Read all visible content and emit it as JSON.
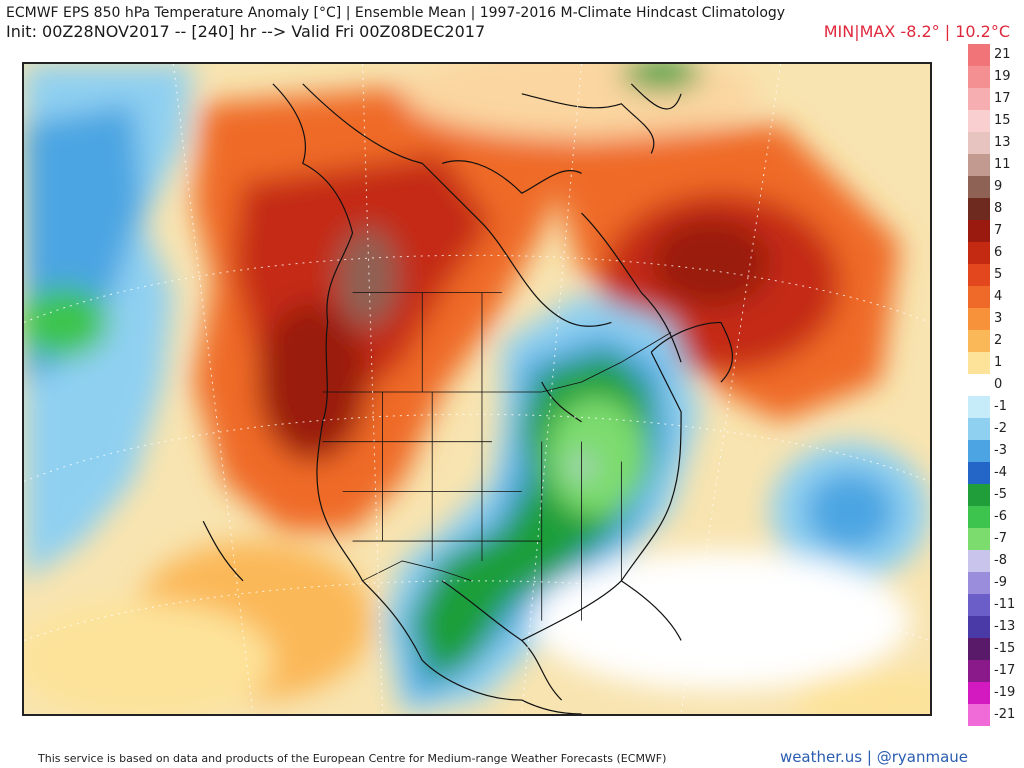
{
  "header": {
    "title": "ECMWF EPS 850 hPa Temperature Anomaly [°C] | Ensemble Mean | 1997-2016 M-Climate Hindcast Climatology",
    "init_line": "Init: 00Z28NOV2017 -- [240] hr --> Valid Fri 00Z08DEC2017",
    "minmax": "MIN|MAX -8.2° | 10.2°C"
  },
  "legend": {
    "labels": [
      "21",
      "19",
      "17",
      "15",
      "13",
      "11",
      "9",
      "8",
      "7",
      "6",
      "5",
      "4",
      "3",
      "2",
      "1",
      "0",
      "-1",
      "-2",
      "-3",
      "-4",
      "-5",
      "-6",
      "-7",
      "-8",
      "-9",
      "-11",
      "-13",
      "-15",
      "-17",
      "-19",
      "-21"
    ],
    "colors": [
      "#f07478",
      "#f48f92",
      "#f7aeb0",
      "#f9cfcf",
      "#e8c4c0",
      "#c39a90",
      "#8e6254",
      "#6e2a1e",
      "#9a1a10",
      "#c42a12",
      "#e2471e",
      "#ef6a28",
      "#f7923a",
      "#fbb858",
      "#fde39a",
      "#ffffff",
      "#c7ecf9",
      "#8fd0f1",
      "#4ca5e2",
      "#2466c8",
      "#1f9e3a",
      "#3dc44e",
      "#7ddc6e",
      "#c8c4ec",
      "#9a8edc",
      "#6c5ec9",
      "#4a3aa8",
      "#5a1a6a",
      "#8a1a8a",
      "#d21ac0",
      "#f06ad8"
    ]
  },
  "footer": {
    "credit": "This service is based on data and products of the European Centre for Medium-range Weather Forecasts (ECMWF)",
    "brand": "weather.us | @ryanmaue"
  }
}
